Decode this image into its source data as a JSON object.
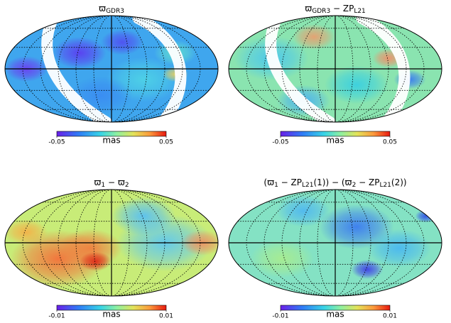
{
  "chart_data": [
    {
      "type": "map",
      "title": [
        {
          "text": "ϖ"
        },
        {
          "text": "GDR3",
          "sub": true
        }
      ],
      "colorbar": {
        "label": "mas",
        "lim": [
          -0.05,
          0.05
        ],
        "ticks": [
          -0.05,
          0.05
        ]
      }
    },
    {
      "type": "map",
      "title": [
        {
          "text": "ϖ"
        },
        {
          "text": "GDR3",
          "sub": true
        },
        {
          "text": " − ZP"
        },
        {
          "text": "L21",
          "sub": true
        }
      ],
      "colorbar": {
        "label": "mas",
        "lim": [
          -0.05,
          0.05
        ],
        "ticks": [
          -0.05,
          0.05
        ]
      }
    },
    {
      "type": "map",
      "title": [
        {
          "text": "ϖ"
        },
        {
          "text": "1",
          "sub": true
        },
        {
          "text": " − ϖ"
        },
        {
          "text": "2",
          "sub": true
        }
      ],
      "colorbar": {
        "label": "mas",
        "lim": [
          -0.01,
          0.01
        ],
        "ticks": [
          -0.01,
          0.01
        ]
      }
    },
    {
      "type": "map",
      "title": [
        {
          "text": "(ϖ"
        },
        {
          "text": "1",
          "sub": true
        },
        {
          "text": " − ZP"
        },
        {
          "text": "L21",
          "sub": true
        },
        {
          "text": "(1)) − (ϖ"
        },
        {
          "text": "2",
          "sub": true
        },
        {
          "text": " − ZP"
        },
        {
          "text": "L21",
          "sub": true
        },
        {
          "text": "(2))"
        }
      ],
      "colorbar": {
        "label": "mas",
        "lim": [
          -0.01,
          0.01
        ],
        "ticks": [
          -0.01,
          0.01
        ]
      }
    }
  ]
}
